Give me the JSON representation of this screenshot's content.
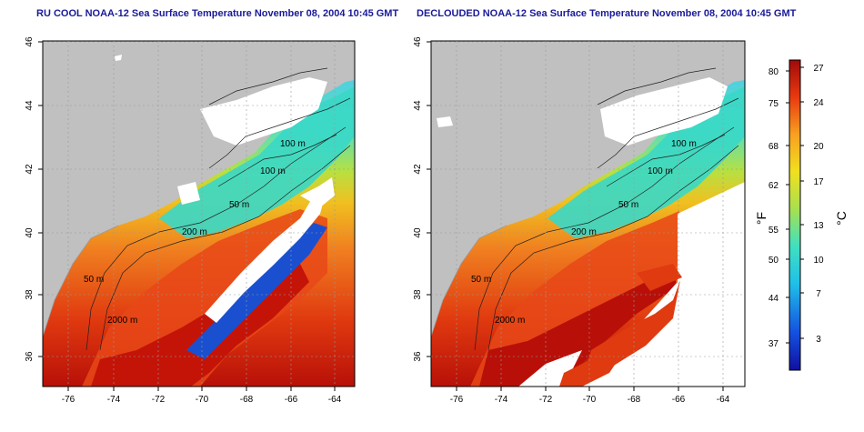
{
  "titles": {
    "left": "RU COOL NOAA-12 Sea Surface Temperature November 08, 2004 10:45 GMT",
    "right": "DECLOUDED NOAA-12 Sea Surface Temperature November 08, 2004 10:45 GMT"
  },
  "axes": {
    "lon_ticks": [
      "-76",
      "-74",
      "-72",
      "-70",
      "-68",
      "-66",
      "-64"
    ],
    "lat_ticks": [
      "36",
      "38",
      "40",
      "42",
      "44",
      "46"
    ]
  },
  "contours": {
    "labels": [
      "100 m",
      "100 m",
      "50 m",
      "200 m",
      "50 m",
      "2000 m"
    ]
  },
  "colorbar": {
    "fahrenheit_unit": "°F",
    "celsius_unit": "°C",
    "fahrenheit_ticks": [
      "80",
      "75",
      "68",
      "62",
      "55",
      "50",
      "44",
      "37"
    ],
    "celsius_ticks": [
      "27",
      "24",
      "20",
      "17",
      "13",
      "10",
      "7",
      "3"
    ]
  },
  "colors": {
    "land": "#c0c0c0",
    "cloud": "#ffffff",
    "warm": "#c81a10",
    "cool": "#1a50d0",
    "title": "#1a1a9a"
  }
}
